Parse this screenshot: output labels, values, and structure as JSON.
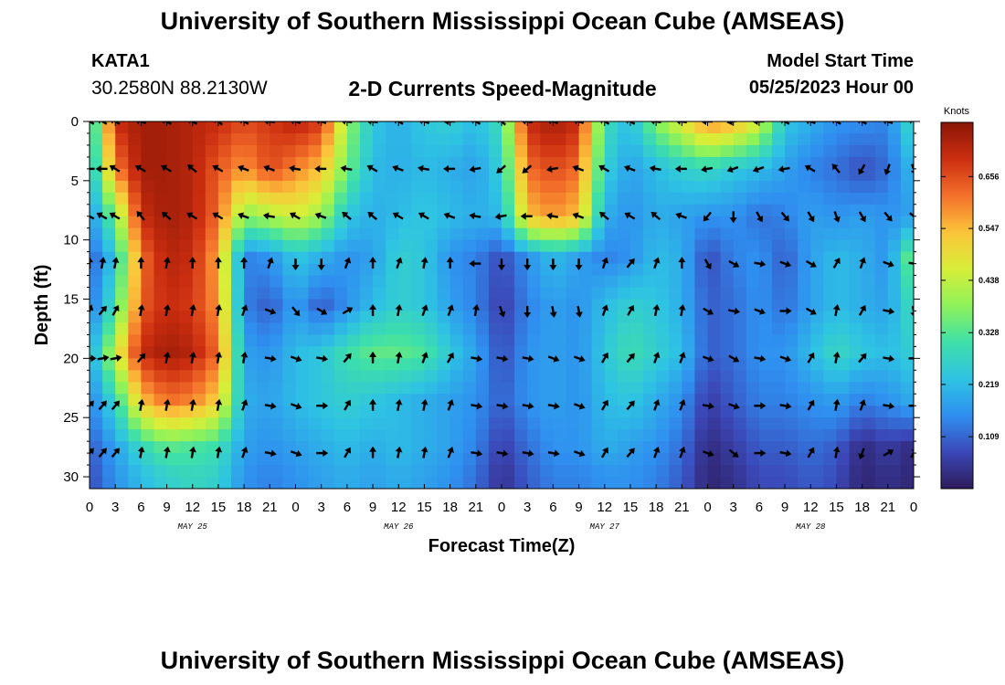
{
  "header": {
    "main_title": "University of Southern Mississippi Ocean Cube (AMSEAS)",
    "station_id": "KATA1",
    "station_coords": "30.2580N  88.2130W",
    "chart_title": "2-D Currents Speed-Magnitude",
    "model_start_label": "Model Start Time",
    "model_start_value": "05/25/2023 Hour 00"
  },
  "footer": {
    "title": "University of Southern Mississippi Ocean Cube (AMSEAS)"
  },
  "colors": {
    "scale": [
      "#2d1a5a",
      "#3b48b8",
      "#2f8ff0",
      "#2ec3e3",
      "#3ee0a8",
      "#8ef25a",
      "#d8ee38",
      "#fbc43a",
      "#f4702a",
      "#cc2e10",
      "#8a1606"
    ]
  },
  "chart_data": {
    "type": "heatmap",
    "title": "2-D Currents Speed-Magnitude",
    "xlabel": "Forecast Time(Z)",
    "ylabel": "Depth (ft)",
    "x_tick_labels": [
      "0",
      "3",
      "6",
      "9",
      "12",
      "15",
      "18",
      "21",
      "0",
      "3",
      "6",
      "9",
      "12",
      "15",
      "18",
      "21",
      "0",
      "3",
      "6",
      "9",
      "12",
      "15",
      "18",
      "21",
      "0",
      "3",
      "6",
      "9",
      "12",
      "15",
      "18",
      "21",
      "0"
    ],
    "date_labels": [
      {
        "label": "MAY 25",
        "hour": 12
      },
      {
        "label": "MAY 26",
        "hour": 36
      },
      {
        "label": "MAY 27",
        "hour": 60
      },
      {
        "label": "MAY 28",
        "hour": 84
      }
    ],
    "xlim": [
      0,
      96
    ],
    "ylim": [
      0,
      31
    ],
    "y_ticks": [
      0,
      5,
      10,
      15,
      20,
      25,
      30
    ],
    "colorbar": {
      "label": "Knots",
      "ticks": [
        "0.656",
        "0.547",
        "0.438",
        "0.328",
        "0.219",
        "0.109"
      ],
      "tick_values": [
        0.656,
        0.547,
        0.438,
        0.328,
        0.219,
        0.109
      ],
      "range": [
        0,
        0.77
      ]
    },
    "hours": [
      0,
      3,
      6,
      9,
      12,
      15,
      18,
      21,
      24,
      27,
      30,
      33,
      36,
      39,
      42,
      45,
      48,
      51,
      54,
      57,
      60,
      63,
      66,
      69,
      72,
      75,
      78,
      81,
      84,
      87,
      90,
      93,
      96
    ],
    "depths_ft": [
      0,
      4,
      8,
      11.5,
      15.5,
      19.5,
      23.5,
      27.5,
      30
    ],
    "speed_knots": [
      [
        0.22,
        0.7,
        0.74,
        0.74,
        0.72,
        0.7,
        0.66,
        0.68,
        0.72,
        0.68,
        0.4,
        0.24,
        0.2,
        0.24,
        0.26,
        0.22,
        0.3,
        0.7,
        0.74,
        0.7,
        0.3,
        0.22,
        0.38,
        0.48,
        0.6,
        0.56,
        0.46,
        0.24,
        0.2,
        0.16,
        0.16,
        0.14,
        0.3
      ],
      [
        0.2,
        0.6,
        0.74,
        0.74,
        0.72,
        0.64,
        0.58,
        0.66,
        0.6,
        0.54,
        0.36,
        0.22,
        0.2,
        0.22,
        0.2,
        0.18,
        0.26,
        0.62,
        0.66,
        0.62,
        0.26,
        0.18,
        0.22,
        0.26,
        0.28,
        0.24,
        0.22,
        0.18,
        0.14,
        0.12,
        0.08,
        0.12,
        0.22
      ],
      [
        0.16,
        0.36,
        0.7,
        0.74,
        0.72,
        0.62,
        0.38,
        0.42,
        0.46,
        0.4,
        0.24,
        0.2,
        0.22,
        0.24,
        0.22,
        0.2,
        0.22,
        0.54,
        0.58,
        0.54,
        0.2,
        0.16,
        0.2,
        0.18,
        0.16,
        0.16,
        0.12,
        0.14,
        0.18,
        0.16,
        0.18,
        0.16,
        0.18
      ],
      [
        0.1,
        0.24,
        0.62,
        0.72,
        0.7,
        0.56,
        0.14,
        0.16,
        0.24,
        0.2,
        0.16,
        0.18,
        0.26,
        0.24,
        0.16,
        0.14,
        0.08,
        0.16,
        0.22,
        0.18,
        0.14,
        0.16,
        0.22,
        0.2,
        0.08,
        0.14,
        0.16,
        0.1,
        0.18,
        0.22,
        0.2,
        0.16,
        0.38
      ],
      [
        0.12,
        0.3,
        0.64,
        0.7,
        0.68,
        0.58,
        0.14,
        0.1,
        0.18,
        0.1,
        0.16,
        0.22,
        0.26,
        0.24,
        0.18,
        0.14,
        0.06,
        0.14,
        0.18,
        0.16,
        0.22,
        0.26,
        0.24,
        0.2,
        0.1,
        0.12,
        0.16,
        0.12,
        0.18,
        0.22,
        0.2,
        0.18,
        0.3
      ],
      [
        0.18,
        0.44,
        0.7,
        0.74,
        0.72,
        0.62,
        0.18,
        0.16,
        0.22,
        0.24,
        0.3,
        0.34,
        0.34,
        0.32,
        0.24,
        0.18,
        0.08,
        0.16,
        0.18,
        0.16,
        0.24,
        0.3,
        0.26,
        0.22,
        0.1,
        0.12,
        0.16,
        0.16,
        0.22,
        0.28,
        0.24,
        0.22,
        0.26
      ],
      [
        0.14,
        0.28,
        0.54,
        0.62,
        0.6,
        0.52,
        0.2,
        0.18,
        0.22,
        0.24,
        0.26,
        0.24,
        0.22,
        0.2,
        0.18,
        0.16,
        0.1,
        0.16,
        0.18,
        0.16,
        0.22,
        0.24,
        0.2,
        0.16,
        0.06,
        0.1,
        0.14,
        0.14,
        0.16,
        0.18,
        0.14,
        0.16,
        0.2
      ],
      [
        0.1,
        0.18,
        0.28,
        0.34,
        0.32,
        0.3,
        0.18,
        0.16,
        0.18,
        0.2,
        0.22,
        0.2,
        0.22,
        0.2,
        0.18,
        0.14,
        0.06,
        0.12,
        0.16,
        0.16,
        0.2,
        0.18,
        0.16,
        0.12,
        0.03,
        0.06,
        0.1,
        0.1,
        0.12,
        0.1,
        0.03,
        0.06,
        0.03
      ],
      [
        0.08,
        0.16,
        0.22,
        0.26,
        0.28,
        0.26,
        0.16,
        0.14,
        0.16,
        0.18,
        0.2,
        0.18,
        0.2,
        0.18,
        0.16,
        0.12,
        0.04,
        0.1,
        0.14,
        0.14,
        0.16,
        0.16,
        0.14,
        0.1,
        0.02,
        0.04,
        0.08,
        0.08,
        0.1,
        0.08,
        0.02,
        0.04,
        0.02
      ]
    ],
    "vector_depths_ft": [
      0,
      4,
      8,
      12,
      16,
      20,
      24,
      28
    ],
    "vector_hours": [
      0,
      1.5,
      3,
      6,
      9,
      12,
      15,
      18,
      21,
      24,
      27,
      30,
      33,
      36,
      39,
      42,
      45,
      48,
      51,
      54,
      57,
      60,
      63,
      66,
      69,
      72,
      75,
      78,
      81,
      84,
      87,
      90,
      93,
      96
    ],
    "vector_direction_deg": [
      [
        300,
        300,
        300,
        290,
        300,
        300,
        310,
        300,
        280,
        290,
        290,
        280,
        280,
        300,
        290,
        270,
        300,
        310,
        280,
        290,
        290,
        300,
        300,
        280,
        280,
        270,
        260,
        270,
        300,
        290,
        300,
        300,
        290,
        300
      ],
      [
        270,
        270,
        300,
        300,
        300,
        310,
        300,
        290,
        290,
        280,
        270,
        280,
        300,
        290,
        280,
        270,
        260,
        230,
        230,
        260,
        290,
        300,
        290,
        280,
        270,
        260,
        250,
        250,
        260,
        300,
        320,
        210,
        200,
        160
      ],
      [
        300,
        300,
        300,
        320,
        310,
        300,
        300,
        290,
        280,
        300,
        290,
        310,
        310,
        300,
        300,
        290,
        280,
        260,
        270,
        280,
        290,
        310,
        300,
        310,
        290,
        220,
        180,
        150,
        140,
        150,
        160,
        150,
        140,
        130
      ],
      [
        0,
        10,
        10,
        0,
        10,
        0,
        0,
        0,
        20,
        180,
        180,
        20,
        0,
        20,
        10,
        0,
        270,
        180,
        180,
        180,
        180,
        20,
        40,
        20,
        0,
        150,
        120,
        100,
        110,
        120,
        30,
        20,
        110,
        100
      ],
      [
        20,
        40,
        30,
        10,
        10,
        10,
        10,
        20,
        110,
        140,
        120,
        60,
        0,
        10,
        20,
        20,
        10,
        160,
        180,
        170,
        170,
        20,
        30,
        10,
        10,
        120,
        100,
        110,
        90,
        120,
        10,
        30,
        100,
        170
      ],
      [
        90,
        80,
        80,
        40,
        10,
        10,
        10,
        10,
        100,
        110,
        100,
        40,
        0,
        10,
        20,
        30,
        100,
        100,
        100,
        110,
        110,
        30,
        40,
        20,
        20,
        110,
        120,
        100,
        110,
        30,
        10,
        40,
        100,
        90
      ],
      [
        40,
        40,
        40,
        10,
        10,
        10,
        10,
        20,
        100,
        110,
        90,
        30,
        0,
        10,
        10,
        20,
        100,
        100,
        100,
        100,
        110,
        30,
        40,
        20,
        20,
        100,
        110,
        90,
        100,
        30,
        10,
        20,
        100,
        90
      ],
      [
        40,
        40,
        40,
        10,
        10,
        10,
        10,
        20,
        100,
        110,
        90,
        30,
        0,
        10,
        10,
        20,
        100,
        100,
        100,
        100,
        110,
        30,
        40,
        20,
        20,
        110,
        130,
        90,
        100,
        30,
        10,
        200,
        60,
        30
      ]
    ]
  }
}
